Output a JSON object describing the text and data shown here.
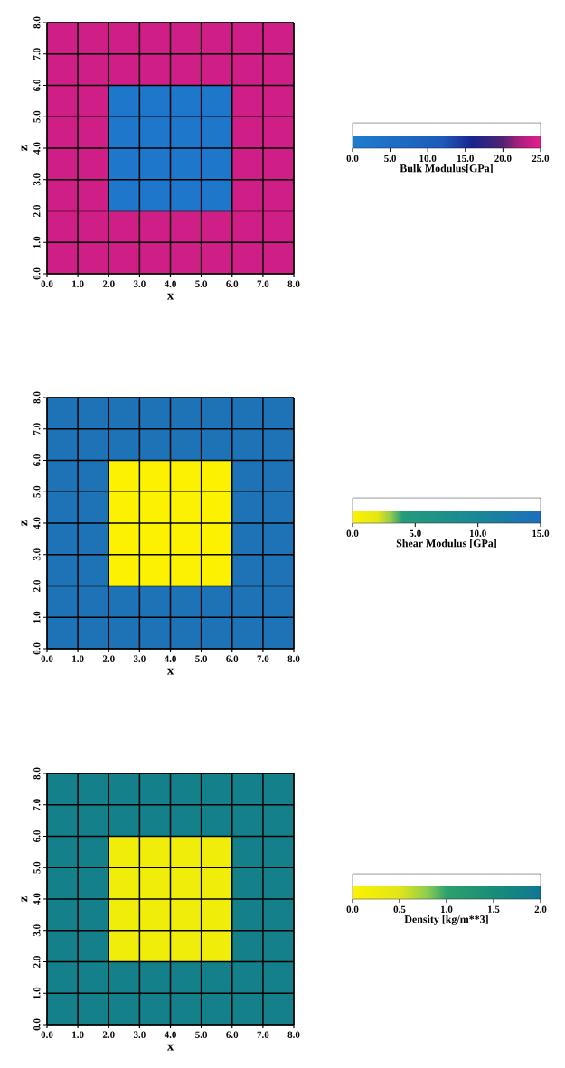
{
  "chart_data": [
    {
      "type": "heatmap",
      "xlabel": "x",
      "ylabel": "z",
      "xlim": [
        0,
        8
      ],
      "ylim": [
        0,
        8
      ],
      "xticks": [
        {
          "value": 0,
          "label": "0.0"
        },
        {
          "value": 1,
          "label": "1.0"
        },
        {
          "value": 2,
          "label": "2.0"
        },
        {
          "value": 3,
          "label": "3.0"
        },
        {
          "value": 4,
          "label": "4.0"
        },
        {
          "value": 5,
          "label": "5.0"
        },
        {
          "value": 6,
          "label": "6.0"
        },
        {
          "value": 7,
          "label": "7.0"
        },
        {
          "value": 8,
          "label": "8.0"
        }
      ],
      "yticks": [
        {
          "value": 0,
          "label": "0.0"
        },
        {
          "value": 1,
          "label": "1.0"
        },
        {
          "value": 2,
          "label": "2.0"
        },
        {
          "value": 3,
          "label": "3.0"
        },
        {
          "value": 4,
          "label": "4.0"
        },
        {
          "value": 5,
          "label": "5.0"
        },
        {
          "value": 6,
          "label": "6.0"
        },
        {
          "value": 7,
          "label": "7.0"
        },
        {
          "value": 8,
          "label": "8.0"
        }
      ],
      "cells": [
        [
          24,
          24,
          24,
          24,
          24,
          24,
          24,
          24
        ],
        [
          24,
          24,
          24,
          24,
          24,
          24,
          24,
          24
        ],
        [
          24,
          24,
          2,
          2,
          2,
          2,
          24,
          24
        ],
        [
          24,
          24,
          2,
          2,
          2,
          2,
          24,
          24
        ],
        [
          24,
          24,
          2,
          2,
          2,
          2,
          24,
          24
        ],
        [
          24,
          24,
          2,
          2,
          2,
          2,
          24,
          24
        ],
        [
          24,
          24,
          24,
          24,
          24,
          24,
          24,
          24
        ],
        [
          24,
          24,
          24,
          24,
          24,
          24,
          24,
          24
        ]
      ],
      "clim": [
        0,
        25
      ],
      "cticks": [
        {
          "value": 0,
          "label": "0.0"
        },
        {
          "value": 5,
          "label": "5.0"
        },
        {
          "value": 10,
          "label": "10.0"
        },
        {
          "value": 15,
          "label": "15.0"
        },
        {
          "value": 20,
          "label": "20.0"
        },
        {
          "value": 25,
          "label": "25.0"
        }
      ],
      "clabel": "Bulk Modulus[GPa]",
      "grid": true
    },
    {
      "type": "heatmap",
      "xlabel": "x",
      "ylabel": "z",
      "xlim": [
        0,
        8
      ],
      "ylim": [
        0,
        8
      ],
      "xticks": [
        {
          "value": 0,
          "label": "0.0"
        },
        {
          "value": 1,
          "label": "1.0"
        },
        {
          "value": 2,
          "label": "2.0"
        },
        {
          "value": 3,
          "label": "3.0"
        },
        {
          "value": 4,
          "label": "4.0"
        },
        {
          "value": 5,
          "label": "5.0"
        },
        {
          "value": 6,
          "label": "6.0"
        },
        {
          "value": 7,
          "label": "7.0"
        },
        {
          "value": 8,
          "label": "8.0"
        }
      ],
      "yticks": [
        {
          "value": 0,
          "label": "0.0"
        },
        {
          "value": 1,
          "label": "1.0"
        },
        {
          "value": 2,
          "label": "2.0"
        },
        {
          "value": 3,
          "label": "3.0"
        },
        {
          "value": 4,
          "label": "4.0"
        },
        {
          "value": 5,
          "label": "5.0"
        },
        {
          "value": 6,
          "label": "6.0"
        },
        {
          "value": 7,
          "label": "7.0"
        },
        {
          "value": 8,
          "label": "8.0"
        }
      ],
      "cells": [
        [
          14,
          14,
          14,
          14,
          14,
          14,
          14,
          14
        ],
        [
          14,
          14,
          14,
          14,
          14,
          14,
          14,
          14
        ],
        [
          14,
          14,
          0,
          0,
          0,
          0,
          14,
          14
        ],
        [
          14,
          14,
          0,
          0,
          0,
          0,
          14,
          14
        ],
        [
          14,
          14,
          0,
          0,
          0,
          0,
          14,
          14
        ],
        [
          14,
          14,
          0,
          0,
          0,
          0,
          14,
          14
        ],
        [
          14,
          14,
          14,
          14,
          14,
          14,
          14,
          14
        ],
        [
          14,
          14,
          14,
          14,
          14,
          14,
          14,
          14
        ]
      ],
      "clim": [
        0,
        15
      ],
      "cticks": [
        {
          "value": 0,
          "label": "0.0"
        },
        {
          "value": 5,
          "label": "5.0"
        },
        {
          "value": 10,
          "label": "10.0"
        },
        {
          "value": 15,
          "label": "15.0"
        }
      ],
      "clabel": "Shear Modulus [GPa]",
      "grid": true
    },
    {
      "type": "heatmap",
      "xlabel": "x",
      "ylabel": "z",
      "xlim": [
        0,
        8
      ],
      "ylim": [
        0,
        8
      ],
      "xticks": [
        {
          "value": 0,
          "label": "0.0"
        },
        {
          "value": 1,
          "label": "1.0"
        },
        {
          "value": 2,
          "label": "2.0"
        },
        {
          "value": 3,
          "label": "3.0"
        },
        {
          "value": 4,
          "label": "4.0"
        },
        {
          "value": 5,
          "label": "5.0"
        },
        {
          "value": 6,
          "label": "6.0"
        },
        {
          "value": 7,
          "label": "7.0"
        },
        {
          "value": 8,
          "label": "8.0"
        }
      ],
      "yticks": [
        {
          "value": 0,
          "label": "0.0"
        },
        {
          "value": 1,
          "label": "1.0"
        },
        {
          "value": 2,
          "label": "2.0"
        },
        {
          "value": 3,
          "label": "3.0"
        },
        {
          "value": 4,
          "label": "4.0"
        },
        {
          "value": 5,
          "label": "5.0"
        },
        {
          "value": 6,
          "label": "6.0"
        },
        {
          "value": 7,
          "label": "7.0"
        },
        {
          "value": 8,
          "label": "8.0"
        }
      ],
      "cells": [
        [
          1.8,
          1.8,
          1.8,
          1.8,
          1.8,
          1.8,
          1.8,
          1.8
        ],
        [
          1.8,
          1.8,
          1.8,
          1.8,
          1.8,
          1.8,
          1.8,
          1.8
        ],
        [
          1.8,
          1.8,
          0.2,
          0.2,
          0.2,
          0.2,
          1.8,
          1.8
        ],
        [
          1.8,
          1.8,
          0.2,
          0.2,
          0.2,
          0.2,
          1.8,
          1.8
        ],
        [
          1.8,
          1.8,
          0.2,
          0.2,
          0.2,
          0.2,
          1.8,
          1.8
        ],
        [
          1.8,
          1.8,
          0.2,
          0.2,
          0.2,
          0.2,
          1.8,
          1.8
        ],
        [
          1.8,
          1.8,
          1.8,
          1.8,
          1.8,
          1.8,
          1.8,
          1.8
        ],
        [
          1.8,
          1.8,
          1.8,
          1.8,
          1.8,
          1.8,
          1.8,
          1.8
        ]
      ],
      "clim": [
        0,
        2
      ],
      "cticks": [
        {
          "value": 0,
          "label": "0.0"
        },
        {
          "value": 0.5,
          "label": "0.5"
        },
        {
          "value": 1,
          "label": "1.0"
        },
        {
          "value": 1.5,
          "label": "1.5"
        },
        {
          "value": 2,
          "label": "2.0"
        }
      ],
      "clabel": "Density [kg/m**3]",
      "grid": true
    }
  ]
}
